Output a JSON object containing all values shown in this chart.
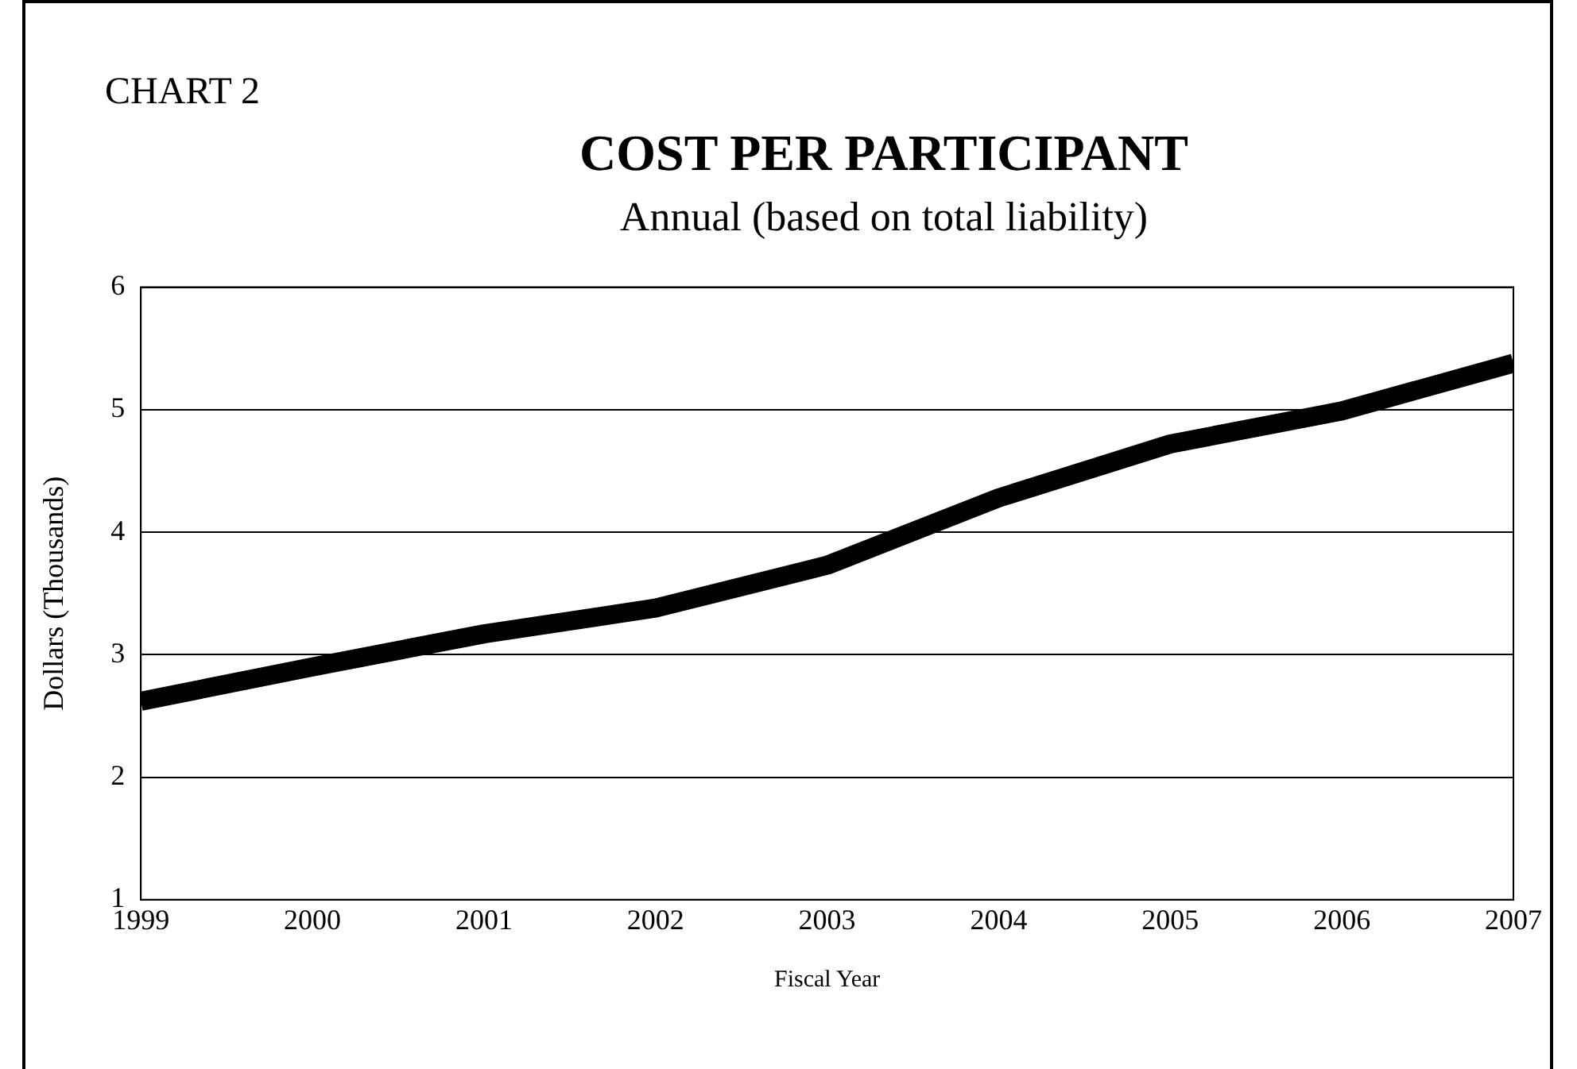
{
  "chart_data": {
    "type": "line",
    "title": "COST PER PARTICIPANT",
    "subtitle": "Annual (based on total liability)",
    "annotations": [
      "CHART 2"
    ],
    "xlabel": "Fiscal Year",
    "ylabel": "Dollars (Thousands)",
    "x": [
      1999,
      2000,
      2001,
      2002,
      2003,
      2004,
      2005,
      2006,
      2007
    ],
    "series": [
      {
        "color": "#000000",
        "values": [
          2.62,
          2.9,
          3.17,
          3.38,
          3.73,
          4.28,
          4.72,
          4.99,
          5.38
        ]
      }
    ],
    "xlim": [
      1999,
      2007
    ],
    "xticks": [
      1999,
      2000,
      2001,
      2002,
      2003,
      2004,
      2005,
      2006,
      2007
    ],
    "ylim": [
      1,
      6
    ],
    "yticks": [
      1,
      2,
      3,
      4,
      5,
      6
    ],
    "grid": "y",
    "legend": false,
    "marker": "none",
    "line_style": "solid"
  }
}
